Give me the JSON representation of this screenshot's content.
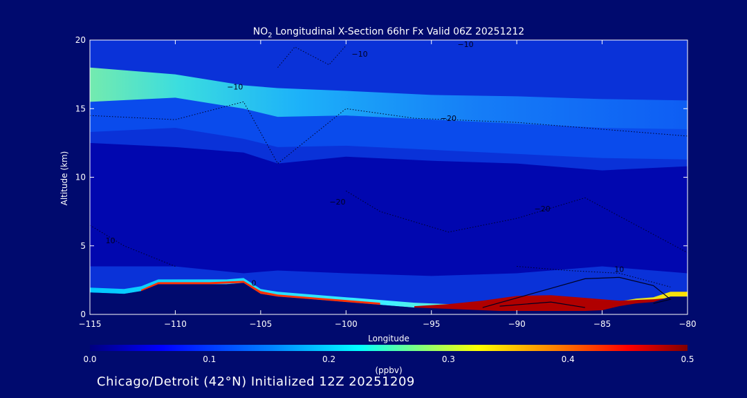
{
  "chart_data": {
    "type": "heatmap",
    "title": {
      "prefix": "NO",
      "subscript": "2",
      "rest": " Longitudinal X-Section 66hr  Fx Valid 06Z 20251212"
    },
    "xlabel": "Longitude",
    "ylabel": "Altitude (km)",
    "xlim": [
      -115,
      -80
    ],
    "ylim": [
      0,
      20
    ],
    "xticks": [
      -115,
      -110,
      -105,
      -100,
      -95,
      -90,
      -85,
      -80
    ],
    "xtick_labels": [
      "−115",
      "−110",
      "−105",
      "−100",
      "−95",
      "−90",
      "−85",
      "−80"
    ],
    "yticks": [
      0,
      5,
      10,
      15,
      20
    ],
    "colorbar": {
      "label": "(ppbv)",
      "min": 0.0,
      "max": 0.5,
      "ticks": [
        0.0,
        0.1,
        0.2,
        0.3,
        0.4,
        0.5
      ],
      "tick_labels": [
        "0.0",
        "0.1",
        "0.2",
        "0.3",
        "0.4",
        "0.5"
      ],
      "colors": [
        "#00007f",
        "#0000ff",
        "#007fff",
        "#00ffff",
        "#7fff7f",
        "#ffff00",
        "#ff7f00",
        "#ff0000",
        "#7f0000"
      ]
    },
    "terrain_km": {
      "lon": [
        -115,
        -114,
        -113,
        -112,
        -111,
        -110,
        -109,
        -108,
        -107,
        -106,
        -105,
        -104,
        -103,
        -102,
        -101,
        -100,
        -99,
        -98,
        -97,
        -96,
        -95,
        -94,
        -93,
        -92,
        -91,
        -90,
        -89,
        -88,
        -87,
        -86,
        -85,
        -84,
        -83,
        -82,
        -81,
        -80
      ],
      "alt": [
        1.6,
        1.55,
        1.5,
        1.7,
        2.2,
        2.2,
        2.2,
        2.2,
        2.2,
        2.3,
        1.5,
        1.3,
        1.2,
        1.1,
        1.0,
        0.9,
        0.8,
        0.7,
        0.6,
        0.5,
        0.45,
        0.4,
        0.35,
        0.3,
        0.25,
        0.25,
        0.25,
        0.25,
        0.25,
        0.25,
        0.3,
        0.6,
        0.8,
        0.9,
        1.3,
        1.3
      ]
    },
    "stratospheric_layer": {
      "description_lon": [
        -115,
        -110,
        -106,
        -104,
        -100,
        -95,
        -90,
        -85,
        -80
      ],
      "base_km": [
        15.5,
        15.8,
        15.0,
        14.4,
        14.5,
        14.2,
        13.9,
        13.6,
        13.5
      ],
      "top_km": [
        18.0,
        17.5,
        16.7,
        16.5,
        16.3,
        16.0,
        15.9,
        15.7,
        15.6
      ],
      "peak_ppbv": [
        0.26,
        0.24,
        0.2,
        0.18,
        0.17,
        0.15,
        0.13,
        0.12,
        0.11
      ]
    },
    "contour_labels": [
      {
        "text": "−10",
        "lon": -99.2,
        "alt": 18.8
      },
      {
        "text": "−10",
        "lon": -93.0,
        "alt": 19.5
      },
      {
        "text": "−10",
        "lon": -106.5,
        "alt": 16.4
      },
      {
        "text": "−20",
        "lon": -94.0,
        "alt": 14.1
      },
      {
        "text": "−20",
        "lon": -100.5,
        "alt": 8.0
      },
      {
        "text": "−20",
        "lon": -88.5,
        "alt": 7.5
      },
      {
        "text": "10",
        "lon": -113.8,
        "alt": 5.2
      },
      {
        "text": "10",
        "lon": -84.0,
        "alt": 3.1
      },
      {
        "text": "0",
        "lon": -105.4,
        "alt": 2.1
      }
    ]
  },
  "footer_text": "Chicago/Detroit (42°N) Initialized 12Z 20251209"
}
